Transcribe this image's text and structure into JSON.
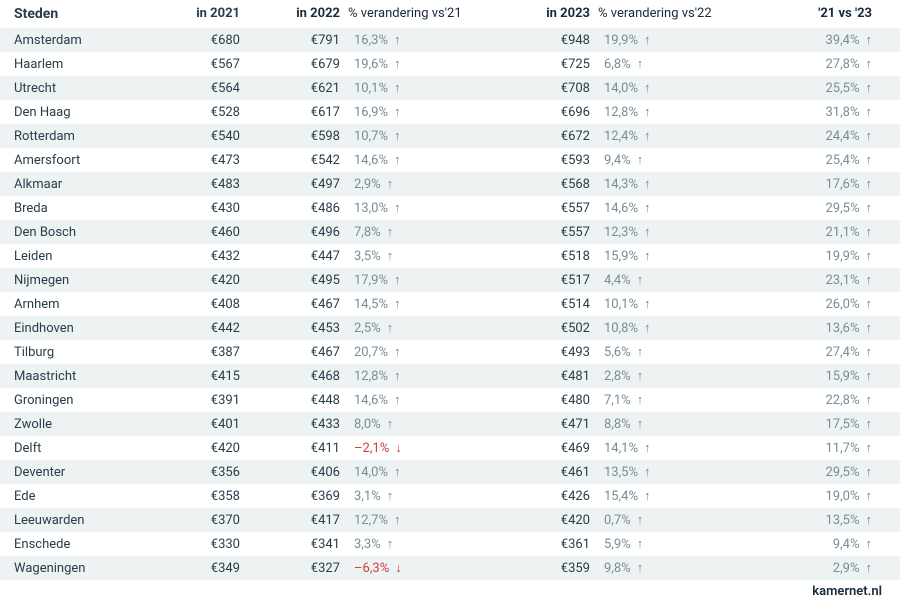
{
  "header": {
    "city": "Steden",
    "y2021": "in 2021",
    "y2022": "in 2022",
    "ch21": "% verandering vs'21",
    "y2023": "in 2023",
    "ch22": "% verandering vs'22",
    "col21v23": "'21 vs '23"
  },
  "footer": "kamernet.nl",
  "arrow_up": "↑",
  "arrow_down": "↓",
  "rows": [
    {
      "city": "Amsterdam",
      "v2021": "€680",
      "v2022": "€791",
      "ch21": "16,3%",
      "ch21dir": "up",
      "v2023": "€948",
      "ch22": "19,9%",
      "ch22dir": "up",
      "v21v23": "39,4%",
      "v21v23dir": "up"
    },
    {
      "city": "Haarlem",
      "v2021": "€567",
      "v2022": "€679",
      "ch21": "19,6%",
      "ch21dir": "up",
      "v2023": "€725",
      "ch22": "6,8%",
      "ch22dir": "up",
      "v21v23": "27,8%",
      "v21v23dir": "up"
    },
    {
      "city": "Utrecht",
      "v2021": "€564",
      "v2022": "€621",
      "ch21": "10,1%",
      "ch21dir": "up",
      "v2023": "€708",
      "ch22": "14,0%",
      "ch22dir": "up",
      "v21v23": "25,5%",
      "v21v23dir": "up"
    },
    {
      "city": "Den Haag",
      "v2021": "€528",
      "v2022": "€617",
      "ch21": "16,9%",
      "ch21dir": "up",
      "v2023": "€696",
      "ch22": "12,8%",
      "ch22dir": "up",
      "v21v23": "31,8%",
      "v21v23dir": "up"
    },
    {
      "city": "Rotterdam",
      "v2021": "€540",
      "v2022": "€598",
      "ch21": "10,7%",
      "ch21dir": "up",
      "v2023": "€672",
      "ch22": "12,4%",
      "ch22dir": "up",
      "v21v23": "24,4%",
      "v21v23dir": "up"
    },
    {
      "city": "Amersfoort",
      "v2021": "€473",
      "v2022": "€542",
      "ch21": "14,6%",
      "ch21dir": "up",
      "v2023": "€593",
      "ch22": "9,4%",
      "ch22dir": "up",
      "v21v23": "25,4%",
      "v21v23dir": "up"
    },
    {
      "city": "Alkmaar",
      "v2021": "€483",
      "v2022": "€497",
      "ch21": "2,9%",
      "ch21dir": "up",
      "v2023": "€568",
      "ch22": "14,3%",
      "ch22dir": "up",
      "v21v23": "17,6%",
      "v21v23dir": "up"
    },
    {
      "city": "Breda",
      "v2021": "€430",
      "v2022": "€486",
      "ch21": "13,0%",
      "ch21dir": "up",
      "v2023": "€557",
      "ch22": "14,6%",
      "ch22dir": "up",
      "v21v23": "29,5%",
      "v21v23dir": "up"
    },
    {
      "city": "Den Bosch",
      "v2021": "€460",
      "v2022": "€496",
      "ch21": "7,8%",
      "ch21dir": "up",
      "v2023": "€557",
      "ch22": "12,3%",
      "ch22dir": "up",
      "v21v23": "21,1%",
      "v21v23dir": "up"
    },
    {
      "city": "Leiden",
      "v2021": "€432",
      "v2022": "€447",
      "ch21": "3,5%",
      "ch21dir": "up",
      "v2023": "€518",
      "ch22": "15,9%",
      "ch22dir": "up",
      "v21v23": "19,9%",
      "v21v23dir": "up"
    },
    {
      "city": "Nijmegen",
      "v2021": "€420",
      "v2022": "€495",
      "ch21": "17,9%",
      "ch21dir": "up",
      "v2023": "€517",
      "ch22": "4,4%",
      "ch22dir": "up",
      "v21v23": "23,1%",
      "v21v23dir": "up"
    },
    {
      "city": "Arnhem",
      "v2021": "€408",
      "v2022": "€467",
      "ch21": "14,5%",
      "ch21dir": "up",
      "v2023": "€514",
      "ch22": "10,1%",
      "ch22dir": "up",
      "v21v23": "26,0%",
      "v21v23dir": "up"
    },
    {
      "city": "Eindhoven",
      "v2021": "€442",
      "v2022": "€453",
      "ch21": "2,5%",
      "ch21dir": "up",
      "v2023": "€502",
      "ch22": "10,8%",
      "ch22dir": "up",
      "v21v23": "13,6%",
      "v21v23dir": "up"
    },
    {
      "city": "Tilburg",
      "v2021": "€387",
      "v2022": "€467",
      "ch21": "20,7%",
      "ch21dir": "up",
      "v2023": "€493",
      "ch22": "5,6%",
      "ch22dir": "up",
      "v21v23": "27,4%",
      "v21v23dir": "up"
    },
    {
      "city": "Maastricht",
      "v2021": "€415",
      "v2022": "€468",
      "ch21": "12,8%",
      "ch21dir": "up",
      "v2023": "€481",
      "ch22": "2,8%",
      "ch22dir": "up",
      "v21v23": "15,9%",
      "v21v23dir": "up"
    },
    {
      "city": "Groningen",
      "v2021": "€391",
      "v2022": "€448",
      "ch21": "14,6%",
      "ch21dir": "up",
      "v2023": "€480",
      "ch22": "7,1%",
      "ch22dir": "up",
      "v21v23": "22,8%",
      "v21v23dir": "up"
    },
    {
      "city": "Zwolle",
      "v2021": "€401",
      "v2022": "€433",
      "ch21": "8,0%",
      "ch21dir": "up",
      "v2023": "€471",
      "ch22": "8,8%",
      "ch22dir": "up",
      "v21v23": "17,5%",
      "v21v23dir": "up"
    },
    {
      "city": "Delft",
      "v2021": "€420",
      "v2022": "€411",
      "ch21": "–2,1%",
      "ch21dir": "down",
      "v2023": "€469",
      "ch22": "14,1%",
      "ch22dir": "up",
      "v21v23": "11,7%",
      "v21v23dir": "up"
    },
    {
      "city": "Deventer",
      "v2021": "€356",
      "v2022": "€406",
      "ch21": "14,0%",
      "ch21dir": "up",
      "v2023": "€461",
      "ch22": "13,5%",
      "ch22dir": "up",
      "v21v23": "29,5%",
      "v21v23dir": "up"
    },
    {
      "city": "Ede",
      "v2021": "€358",
      "v2022": "€369",
      "ch21": "3,1%",
      "ch21dir": "up",
      "v2023": "€426",
      "ch22": "15,4%",
      "ch22dir": "up",
      "v21v23": "19,0%",
      "v21v23dir": "up"
    },
    {
      "city": "Leeuwarden",
      "v2021": "€370",
      "v2022": "€417",
      "ch21": "12,7%",
      "ch21dir": "up",
      "v2023": "€420",
      "ch22": "0,7%",
      "ch22dir": "up",
      "v21v23": "13,5%",
      "v21v23dir": "up"
    },
    {
      "city": "Enschede",
      "v2021": "€330",
      "v2022": "€341",
      "ch21": "3,3%",
      "ch21dir": "up",
      "v2023": "€361",
      "ch22": "5,9%",
      "ch22dir": "up",
      "v21v23": "9,4%",
      "v21v23dir": "up"
    },
    {
      "city": "Wageningen",
      "v2021": "€349",
      "v2022": "€327",
      "ch21": "–6,3%",
      "ch21dir": "down",
      "v2023": "€359",
      "ch22": "9,8%",
      "ch22dir": "up",
      "v21v23": "2,9%",
      "v21v23dir": "up"
    }
  ],
  "colors": {
    "row_even": "#edf2f3",
    "row_odd": "#ffffff",
    "text": "#1a2b3c",
    "muted": "#7a8b9c",
    "negative": "#d13b3b"
  }
}
